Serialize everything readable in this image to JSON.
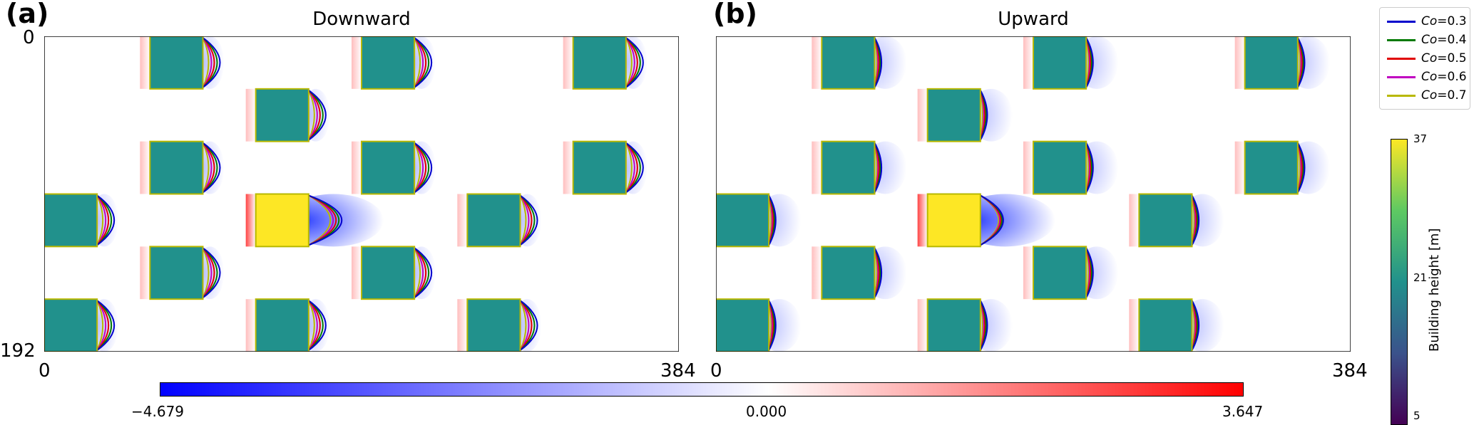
{
  "chart_data": [
    {
      "type": "heatmap",
      "panel": "(a)",
      "title": "Downward",
      "x_ticks": [
        "0",
        "384"
      ],
      "y_ticks": [
        "0",
        "192"
      ],
      "xlim": [
        0,
        384
      ],
      "ylim": [
        192,
        0
      ],
      "buildings": [
        {
          "x": [
            64,
            96
          ],
          "y": [
            0,
            32
          ],
          "height": 21
        },
        {
          "x": [
            192,
            224
          ],
          "y": [
            0,
            32
          ],
          "height": 21
        },
        {
          "x": [
            320,
            352
          ],
          "y": [
            0,
            32
          ],
          "height": 21
        },
        {
          "x": [
            128,
            160
          ],
          "y": [
            32,
            64
          ],
          "height": 21
        },
        {
          "x": [
            64,
            96
          ],
          "y": [
            64,
            96
          ],
          "height": 21
        },
        {
          "x": [
            192,
            224
          ],
          "y": [
            64,
            96
          ],
          "height": 21
        },
        {
          "x": [
            320,
            352
          ],
          "y": [
            64,
            96
          ],
          "height": 21
        },
        {
          "x": [
            0,
            32
          ],
          "y": [
            96,
            128
          ],
          "height": 21
        },
        {
          "x": [
            128,
            160
          ],
          "y": [
            96,
            128
          ],
          "height": 37
        },
        {
          "x": [
            256,
            288
          ],
          "y": [
            96,
            128
          ],
          "height": 21
        },
        {
          "x": [
            64,
            96
          ],
          "y": [
            128,
            160
          ],
          "height": 21
        },
        {
          "x": [
            192,
            224
          ],
          "y": [
            128,
            160
          ],
          "height": 21
        },
        {
          "x": [
            0,
            32
          ],
          "y": [
            160,
            192
          ],
          "height": 21
        },
        {
          "x": [
            128,
            160
          ],
          "y": [
            160,
            192
          ],
          "height": 21
        },
        {
          "x": [
            256,
            288
          ],
          "y": [
            160,
            192
          ],
          "height": 21
        }
      ]
    },
    {
      "type": "heatmap",
      "panel": "(b)",
      "title": "Upward",
      "x_ticks": [
        "0",
        "384"
      ],
      "xlim": [
        0,
        384
      ],
      "ylim": [
        192,
        0
      ],
      "buildings": [
        {
          "x": [
            64,
            96
          ],
          "y": [
            0,
            32
          ],
          "height": 21
        },
        {
          "x": [
            192,
            224
          ],
          "y": [
            0,
            32
          ],
          "height": 21
        },
        {
          "x": [
            320,
            352
          ],
          "y": [
            0,
            32
          ],
          "height": 21
        },
        {
          "x": [
            128,
            160
          ],
          "y": [
            32,
            64
          ],
          "height": 21
        },
        {
          "x": [
            64,
            96
          ],
          "y": [
            64,
            96
          ],
          "height": 21
        },
        {
          "x": [
            192,
            224
          ],
          "y": [
            64,
            96
          ],
          "height": 21
        },
        {
          "x": [
            320,
            352
          ],
          "y": [
            64,
            96
          ],
          "height": 21
        },
        {
          "x": [
            0,
            32
          ],
          "y": [
            96,
            128
          ],
          "height": 21
        },
        {
          "x": [
            128,
            160
          ],
          "y": [
            96,
            128
          ],
          "height": 37
        },
        {
          "x": [
            256,
            288
          ],
          "y": [
            96,
            128
          ],
          "height": 21
        },
        {
          "x": [
            64,
            96
          ],
          "y": [
            128,
            160
          ],
          "height": 21
        },
        {
          "x": [
            192,
            224
          ],
          "y": [
            128,
            160
          ],
          "height": 21
        },
        {
          "x": [
            0,
            32
          ],
          "y": [
            160,
            192
          ],
          "height": 21
        },
        {
          "x": [
            128,
            160
          ],
          "y": [
            160,
            192
          ],
          "height": 21
        },
        {
          "x": [
            256,
            288
          ],
          "y": [
            160,
            192
          ],
          "height": 21
        }
      ]
    }
  ],
  "field_colorbar": {
    "min_label": "−4.679",
    "mid_label": "0.000",
    "max_label": "3.647",
    "min": -4.679,
    "max": 3.647,
    "colors": [
      "#0000ff",
      "#ffffff",
      "#ff0000"
    ]
  },
  "height_colorbar": {
    "label": "Building height [m]",
    "ticks": [
      "37",
      "21",
      "5"
    ],
    "tick_values": [
      37,
      21,
      5
    ],
    "min": 5,
    "max": 37,
    "colors": [
      "#440154",
      "#3b528b",
      "#21918c",
      "#5ec962",
      "#fde725"
    ]
  },
  "legend": {
    "entries": [
      {
        "var": "Co",
        "value": "=0.3",
        "color": "#0000cc"
      },
      {
        "var": "Co",
        "value": "=0.4",
        "color": "#007a00"
      },
      {
        "var": "Co",
        "value": "=0.5",
        "color": "#e00000"
      },
      {
        "var": "Co",
        "value": "=0.6",
        "color": "#c000c0"
      },
      {
        "var": "Co",
        "value": "=0.7",
        "color": "#b8b800"
      }
    ]
  }
}
